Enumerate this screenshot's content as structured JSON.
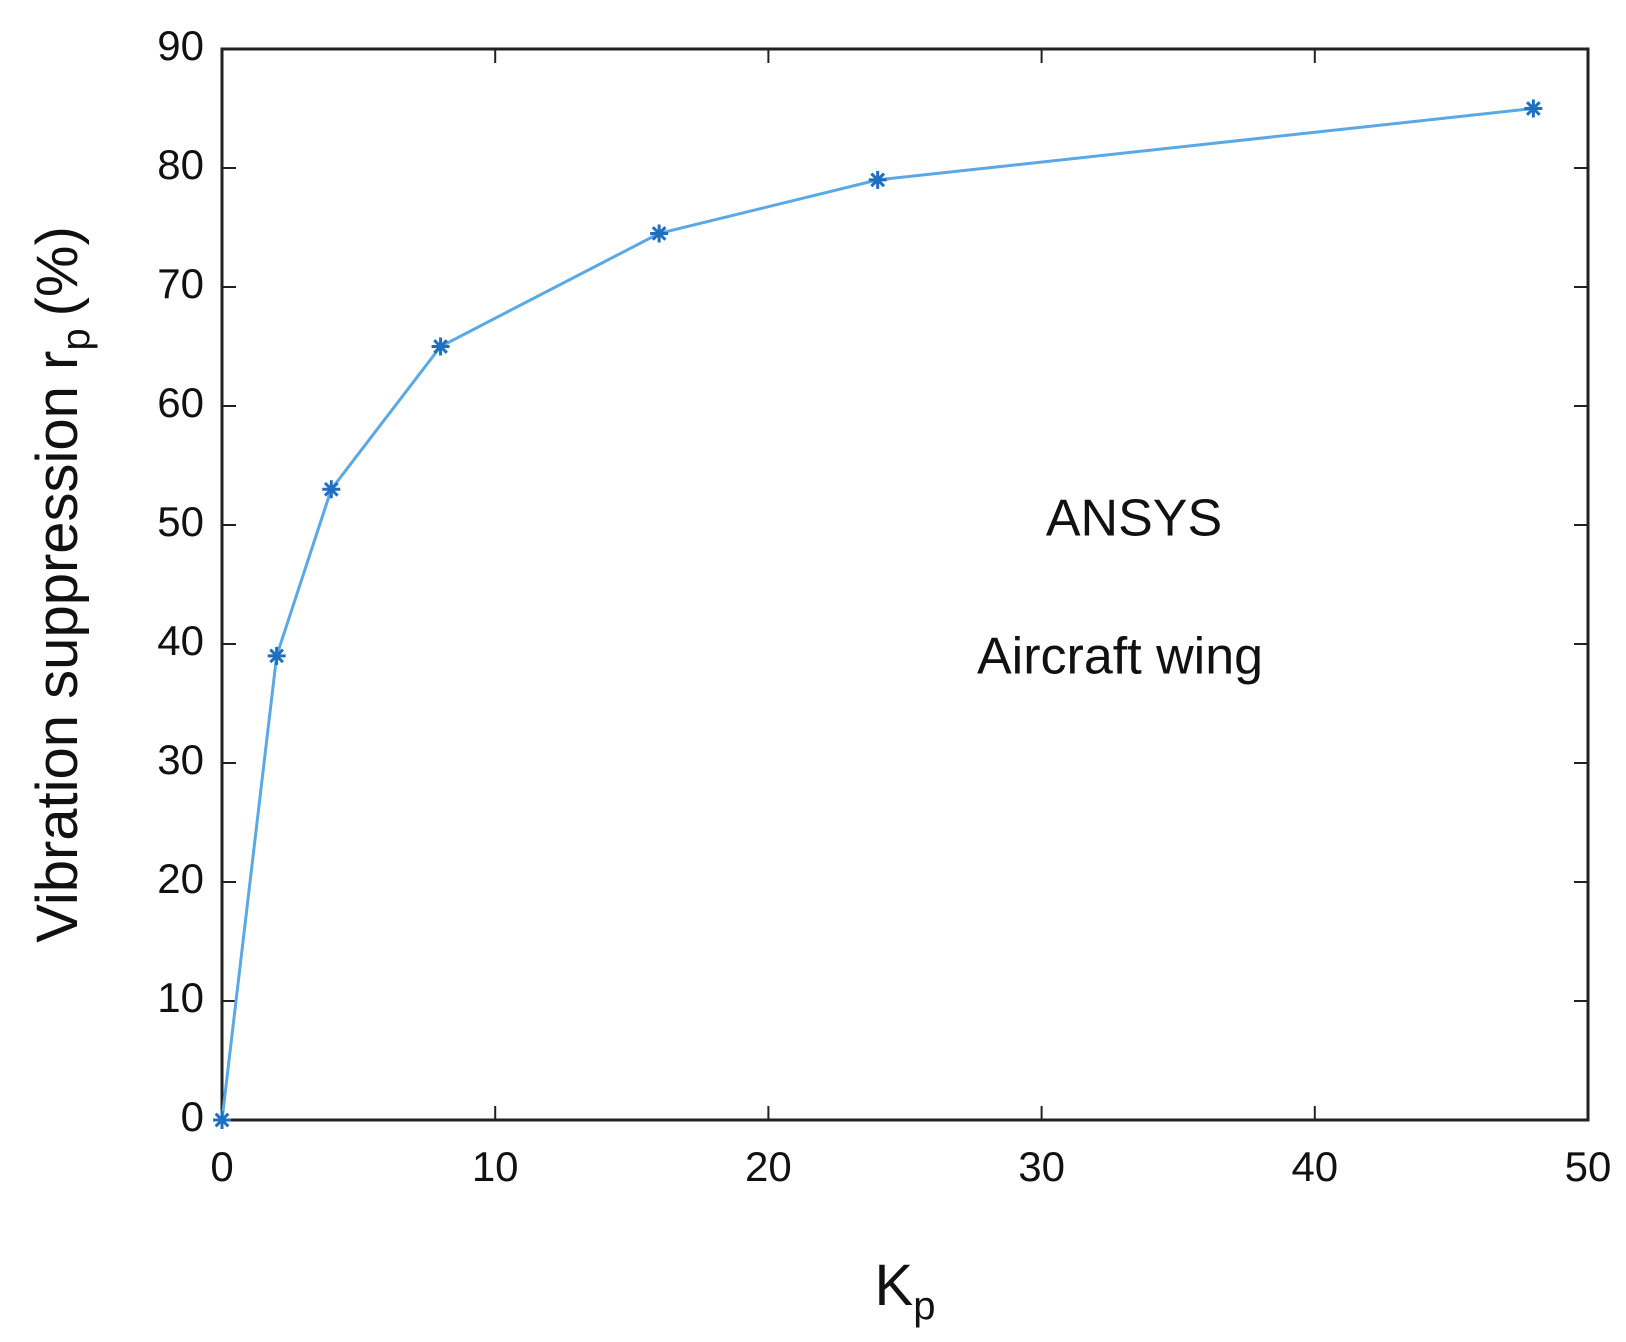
{
  "chart_data": {
    "type": "line",
    "xlabel": {
      "main": "K",
      "sub": "p"
    },
    "ylabel": {
      "main": "Vibration suppression  r",
      "sub": "p",
      "unit": "(%)"
    },
    "annotations": [
      "ANSYS",
      "Aircraft wing"
    ],
    "x": [
      0,
      2,
      4,
      8,
      16,
      24,
      48
    ],
    "series": [
      {
        "color": "#5aa8e4",
        "marker_color": "#1f6fc0",
        "values": [
          0,
          39,
          53,
          65,
          74.5,
          79,
          85
        ]
      }
    ],
    "xlim": [
      0,
      50
    ],
    "xticks": [
      0,
      10,
      20,
      30,
      40,
      50
    ],
    "ylim": [
      0,
      90
    ],
    "yticks": [
      0,
      10,
      20,
      30,
      40,
      50,
      60,
      70,
      80,
      90
    ],
    "grid": false
  }
}
